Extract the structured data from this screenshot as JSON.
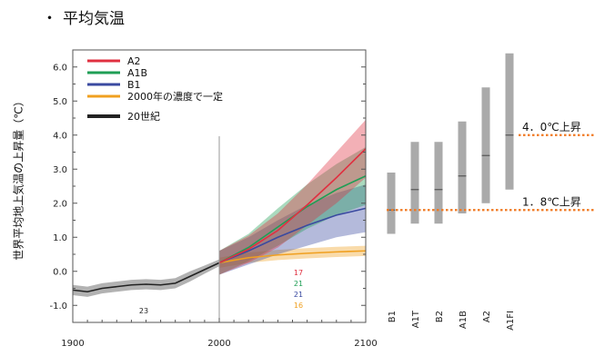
{
  "page_title": "平均気温",
  "chart_data": {
    "type": "line",
    "title": "",
    "xlabel": "",
    "ylabel": "世界平均地上気温の上昇量（℃）",
    "xlim": [
      1900,
      2100
    ],
    "ylim": [
      -1.5,
      6.5
    ],
    "x_ticks": [
      1900,
      2000,
      2100
    ],
    "y_ticks": [
      "6.0",
      "5.0",
      "4.0",
      "3.0",
      "2.0",
      "1.0",
      "0.0",
      "-1.0"
    ],
    "legend": [
      "A2",
      "A1B",
      "B1",
      "2000年の濃度で一定",
      "20世紀"
    ],
    "series": [
      {
        "name": "A2",
        "color": "#e03040",
        "x": [
          2000,
          2020,
          2040,
          2060,
          2080,
          2100
        ],
        "y": [
          0.25,
          0.65,
          1.2,
          1.95,
          2.75,
          3.6
        ],
        "band": [
          0.35,
          0.4,
          0.5,
          0.6,
          0.75,
          0.85
        ]
      },
      {
        "name": "A1B",
        "color": "#1f9e55",
        "x": [
          2000,
          2020,
          2040,
          2060,
          2080,
          2100
        ],
        "y": [
          0.25,
          0.7,
          1.3,
          1.9,
          2.4,
          2.8
        ],
        "band": [
          0.35,
          0.4,
          0.55,
          0.65,
          0.75,
          0.85
        ]
      },
      {
        "name": "B1",
        "color": "#3a4aa0",
        "x": [
          2000,
          2020,
          2040,
          2060,
          2080,
          2100
        ],
        "y": [
          0.25,
          0.6,
          1.0,
          1.35,
          1.65,
          1.85
        ],
        "band": [
          0.35,
          0.4,
          0.5,
          0.6,
          0.65,
          0.7
        ]
      },
      {
        "name": "2000年の濃度で一定",
        "color": "#f0a020",
        "x": [
          2000,
          2020,
          2040,
          2060,
          2080,
          2100
        ],
        "y": [
          0.25,
          0.4,
          0.48,
          0.53,
          0.57,
          0.6
        ],
        "band": [
          0.15,
          0.15,
          0.15,
          0.15,
          0.15,
          0.15
        ]
      },
      {
        "name": "20世紀",
        "color": "#222222",
        "x": [
          1900,
          1910,
          1920,
          1930,
          1940,
          1950,
          1960,
          1970,
          1980,
          1990,
          2000
        ],
        "y": [
          -0.55,
          -0.6,
          -0.5,
          -0.45,
          -0.4,
          -0.38,
          -0.4,
          -0.35,
          -0.15,
          0.05,
          0.25
        ],
        "band": [
          0.15,
          0.15,
          0.15,
          0.15,
          0.15,
          0.15,
          0.15,
          0.15,
          0.15,
          0.12,
          0.1
        ]
      }
    ],
    "model_counts": [
      {
        "value": "23",
        "color": "#222222"
      },
      {
        "value": "17",
        "color": "#e03040"
      },
      {
        "value": "21",
        "color": "#1f9e55"
      },
      {
        "value": "21",
        "color": "#3a4aa0"
      },
      {
        "value": "16",
        "color": "#f0a020"
      }
    ],
    "scenario_ranges": [
      {
        "name": "B1",
        "low": 1.1,
        "high": 2.9,
        "best": 1.8
      },
      {
        "name": "A1T",
        "low": 1.4,
        "high": 3.8,
        "best": 2.4
      },
      {
        "name": "B2",
        "low": 1.4,
        "high": 3.8,
        "best": 2.4
      },
      {
        "name": "A1B",
        "low": 1.7,
        "high": 4.4,
        "best": 2.8
      },
      {
        "name": "A2",
        "low": 2.0,
        "high": 5.4,
        "best": 3.4
      },
      {
        "name": "A1FI",
        "low": 2.4,
        "high": 6.4,
        "best": 4.0
      }
    ],
    "annotations": [
      {
        "text": "4．0℃上昇",
        "value": 4.0
      },
      {
        "text": "1．8℃上昇",
        "value": 1.8
      }
    ],
    "colors": {
      "range_bar": "#aaaaaa",
      "dotted_line": "#f07820"
    }
  }
}
